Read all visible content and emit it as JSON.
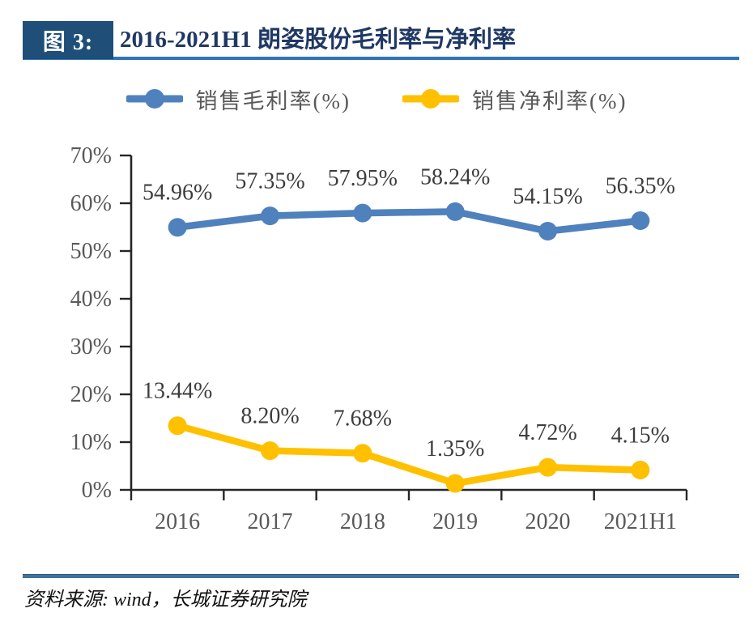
{
  "header": {
    "tag": "图 3:",
    "title": "2016-2021H1 朗姿股份毛利率与净利率"
  },
  "legend": {
    "position": "top",
    "items": [
      {
        "label": "销售毛利率(%)",
        "color": "#4F81BD"
      },
      {
        "label": "销售净利率(%)",
        "color": "#FFC000"
      }
    ]
  },
  "chart_data": {
    "type": "line",
    "title": "2016-2021H1 朗姿股份毛利率与净利率",
    "categories": [
      "2016",
      "2017",
      "2018",
      "2019",
      "2020",
      "2021H1"
    ],
    "series": [
      {
        "name": "销售毛利率(%)",
        "color": "#4F81BD",
        "values": [
          54.96,
          57.35,
          57.95,
          58.24,
          54.15,
          56.35
        ],
        "labels": [
          "54.96%",
          "57.35%",
          "57.95%",
          "58.24%",
          "54.15%",
          "56.35%"
        ]
      },
      {
        "name": "销售净利率(%)",
        "color": "#FFC000",
        "values": [
          13.44,
          8.2,
          7.68,
          1.35,
          4.72,
          4.15
        ],
        "labels": [
          "13.44%",
          "8.20%",
          "7.68%",
          "1.35%",
          "4.72%",
          "4.15%"
        ]
      }
    ],
    "xlabel": "",
    "ylabel": "",
    "ylim": [
      0,
      70
    ],
    "y_tick_step": 10,
    "y_ticks": [
      "0%",
      "10%",
      "20%",
      "30%",
      "40%",
      "50%",
      "60%",
      "70%"
    ],
    "grid": false,
    "legend_position": "top",
    "axis_color": "#262626",
    "tick_label_color": "#595959",
    "data_label_color": "#3d3d3d"
  },
  "footer": {
    "source": "资料来源: wind，长城证券研究院"
  },
  "colors": {
    "header_box": "#1F4E79",
    "header_title": "#1F3864",
    "header_rule": "#2E74B6",
    "footer_rule": "#41719C",
    "series_blue": "#4F81BD",
    "series_yellow": "#FFC000"
  }
}
